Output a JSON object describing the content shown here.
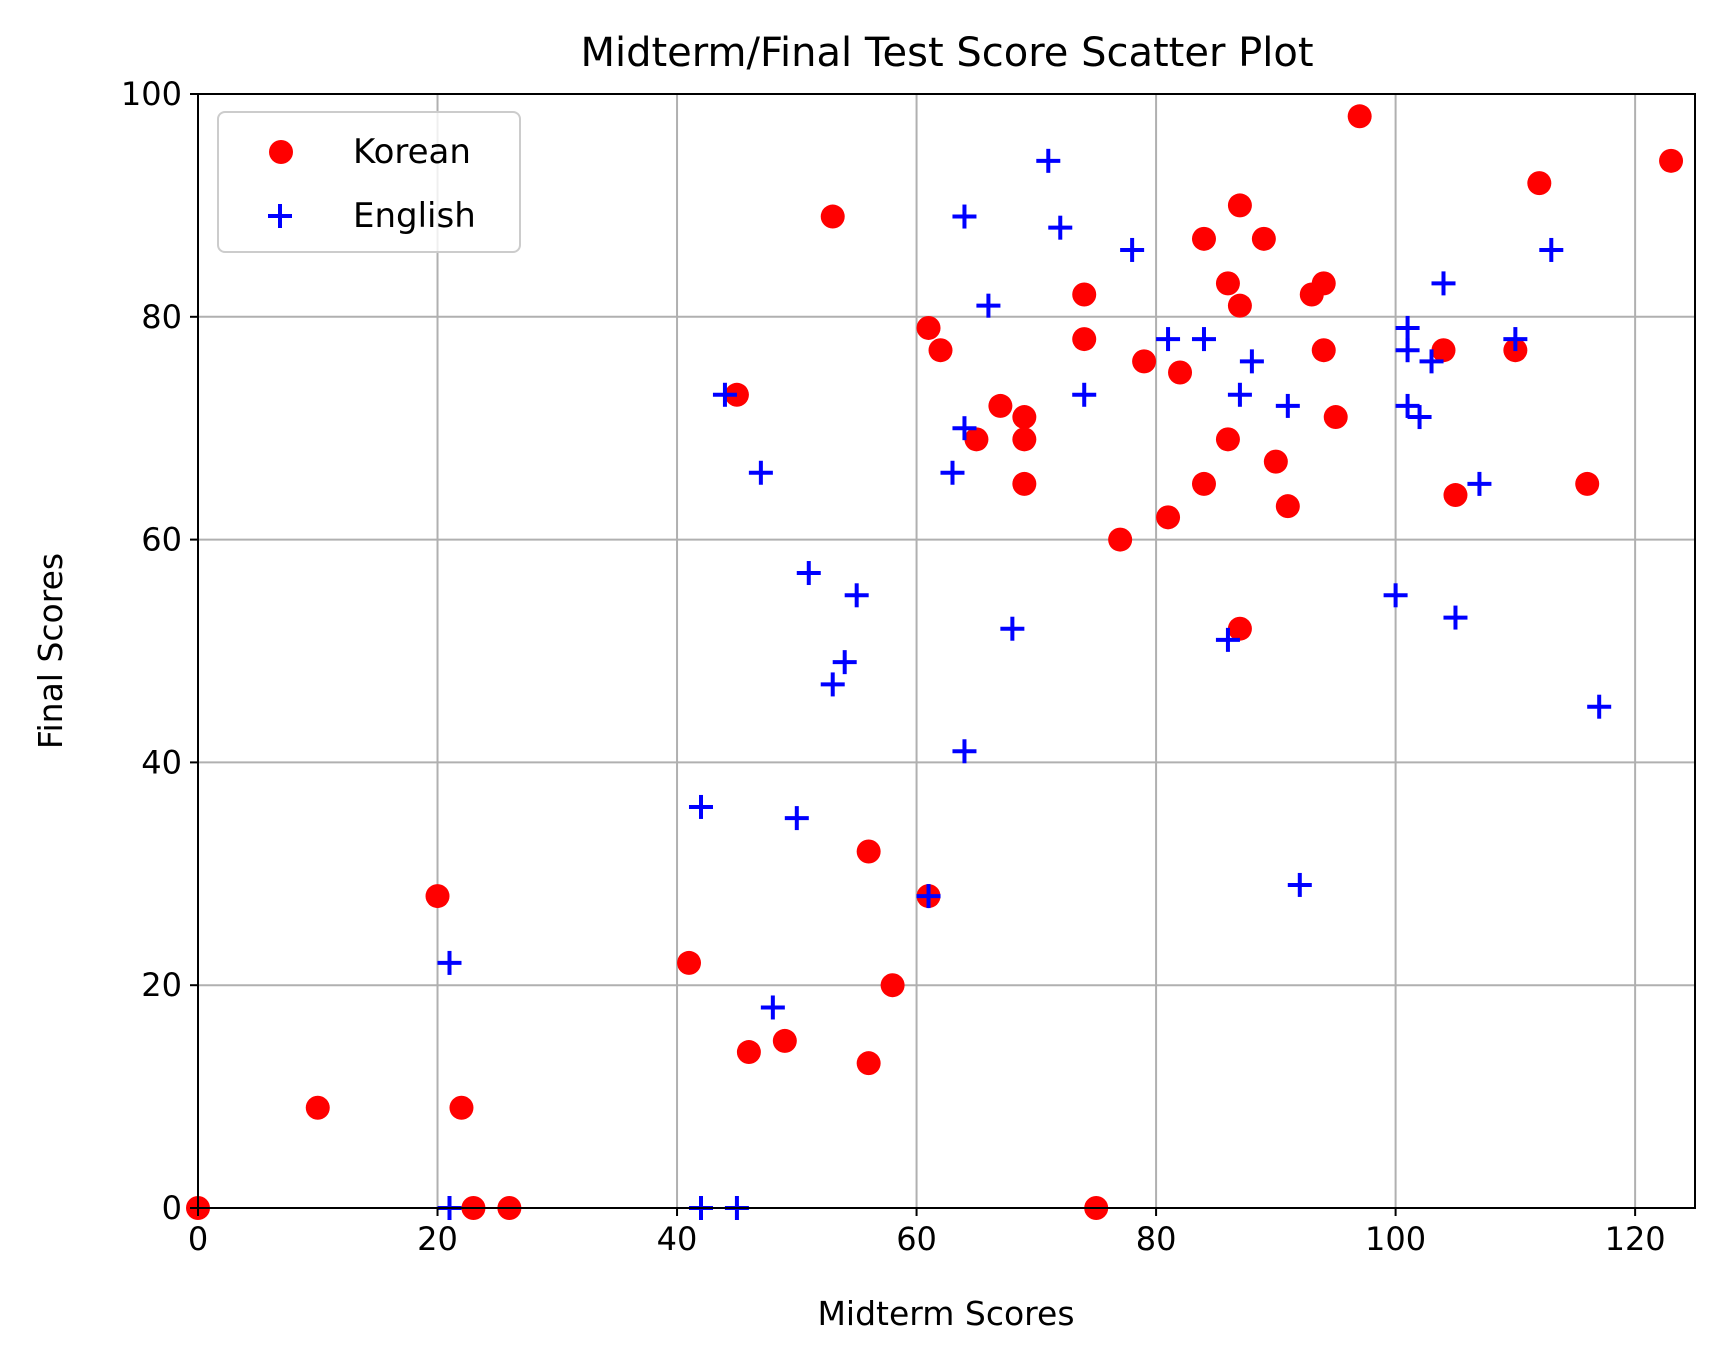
{
  "chart_data": {
    "type": "scatter",
    "title": "Midterm/Final Test Score Scatter Plot",
    "xlabel": "Midterm Scores",
    "ylabel": "Final Scores",
    "xlim": [
      0,
      125
    ],
    "ylim": [
      0,
      100
    ],
    "xticks": [
      "0",
      "20",
      "40",
      "60",
      "80",
      "100",
      "120"
    ],
    "yticks": [
      "0",
      "20",
      "40",
      "60",
      "80",
      "100"
    ],
    "grid": true,
    "legend_position": "top-left",
    "series": [
      {
        "name": "Korean",
        "marker": "circle",
        "color": "#ff0000",
        "points": [
          [
            0,
            0
          ],
          [
            10,
            9
          ],
          [
            20,
            28
          ],
          [
            22,
            9
          ],
          [
            23,
            0
          ],
          [
            26,
            0
          ],
          [
            41,
            22
          ],
          [
            45,
            73
          ],
          [
            46,
            14
          ],
          [
            49,
            15
          ],
          [
            53,
            89
          ],
          [
            56,
            32
          ],
          [
            56,
            13
          ],
          [
            58,
            20
          ],
          [
            61,
            79
          ],
          [
            61,
            28
          ],
          [
            62,
            77
          ],
          [
            65,
            69
          ],
          [
            67,
            72
          ],
          [
            69,
            71
          ],
          [
            69,
            69
          ],
          [
            69,
            65
          ],
          [
            74,
            82
          ],
          [
            74,
            78
          ],
          [
            75,
            0
          ],
          [
            77,
            60
          ],
          [
            79,
            76
          ],
          [
            81,
            62
          ],
          [
            82,
            75
          ],
          [
            84,
            87
          ],
          [
            84,
            65
          ],
          [
            86,
            83
          ],
          [
            86,
            69
          ],
          [
            87,
            90
          ],
          [
            87,
            81
          ],
          [
            87,
            52
          ],
          [
            89,
            87
          ],
          [
            90,
            67
          ],
          [
            91,
            63
          ],
          [
            93,
            82
          ],
          [
            94,
            83
          ],
          [
            94,
            77
          ],
          [
            95,
            71
          ],
          [
            97,
            98
          ],
          [
            104,
            77
          ],
          [
            105,
            64
          ],
          [
            110,
            77
          ],
          [
            112,
            92
          ],
          [
            116,
            65
          ],
          [
            123,
            94
          ]
        ]
      },
      {
        "name": "English",
        "marker": "plus",
        "color": "#0000ff",
        "points": [
          [
            21,
            22
          ],
          [
            21,
            0
          ],
          [
            42,
            36
          ],
          [
            42,
            0
          ],
          [
            44,
            73
          ],
          [
            45,
            0
          ],
          [
            47,
            66
          ],
          [
            48,
            18
          ],
          [
            50,
            35
          ],
          [
            51,
            57
          ],
          [
            53,
            47
          ],
          [
            54,
            49
          ],
          [
            55,
            55
          ],
          [
            61,
            28
          ],
          [
            63,
            66
          ],
          [
            64,
            89
          ],
          [
            64,
            70
          ],
          [
            64,
            41
          ],
          [
            66,
            81
          ],
          [
            68,
            52
          ],
          [
            71,
            94
          ],
          [
            72,
            88
          ],
          [
            74,
            73
          ],
          [
            78,
            86
          ],
          [
            81,
            78
          ],
          [
            84,
            78
          ],
          [
            86,
            51
          ],
          [
            87,
            73
          ],
          [
            88,
            76
          ],
          [
            91,
            72
          ],
          [
            92,
            29
          ],
          [
            100,
            55
          ],
          [
            101,
            79
          ],
          [
            101,
            77
          ],
          [
            101,
            72
          ],
          [
            102,
            71
          ],
          [
            103,
            76
          ],
          [
            104,
            83
          ],
          [
            105,
            53
          ],
          [
            107,
            65
          ],
          [
            110,
            78
          ],
          [
            113,
            86
          ],
          [
            117,
            45
          ]
        ]
      }
    ]
  }
}
